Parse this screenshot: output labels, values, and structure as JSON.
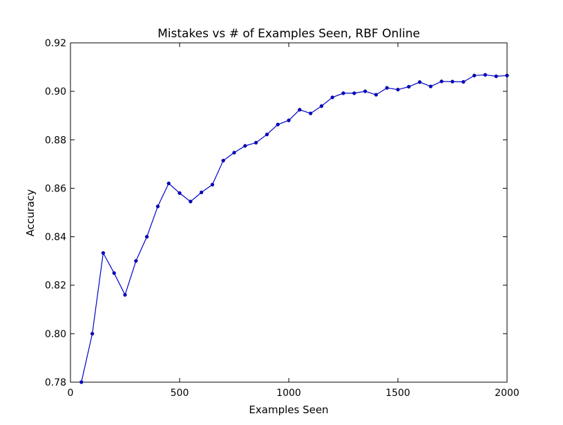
{
  "chart_data": {
    "type": "line",
    "title": "Mistakes vs # of Examples Seen, RBF Online",
    "xlabel": "Examples Seen",
    "ylabel": "Accuracy",
    "xlim": [
      0,
      2000
    ],
    "ylim": [
      0.78,
      0.92
    ],
    "xticks": [
      0,
      500,
      1000,
      1500,
      2000
    ],
    "xtick_labels": [
      "0",
      "500",
      "1000",
      "1500",
      "2000"
    ],
    "yticks": [
      0.78,
      0.8,
      0.82,
      0.84,
      0.86,
      0.88,
      0.9,
      0.92
    ],
    "ytick_labels": [
      "0.78",
      "0.80",
      "0.82",
      "0.84",
      "0.86",
      "0.88",
      "0.90",
      "0.92"
    ],
    "grid": false,
    "colors": {
      "series": "#0000cc"
    },
    "series": [
      {
        "x": [
          50,
          100,
          150,
          200,
          250,
          300,
          350,
          400,
          450,
          500,
          550,
          600,
          650,
          700,
          750,
          800,
          850,
          900,
          950,
          1000,
          1050,
          1100,
          1150,
          1200,
          1250,
          1300,
          1350,
          1400,
          1450,
          1500,
          1550,
          1600,
          1650,
          1700,
          1750,
          1800,
          1850,
          1900,
          1950,
          2000
        ],
        "values": [
          0.78,
          0.8,
          0.8333,
          0.825,
          0.816,
          0.83,
          0.84,
          0.8525,
          0.862,
          0.858,
          0.8545,
          0.8583,
          0.8615,
          0.8714,
          0.8747,
          0.8775,
          0.8788,
          0.8822,
          0.8863,
          0.888,
          0.8924,
          0.8909,
          0.8939,
          0.8975,
          0.8992,
          0.8992,
          0.9,
          0.8986,
          0.9014,
          0.9007,
          0.9019,
          0.9038,
          0.902,
          0.9041,
          0.904,
          0.9039,
          0.9065,
          0.9068,
          0.9062,
          0.9065
        ]
      }
    ]
  }
}
